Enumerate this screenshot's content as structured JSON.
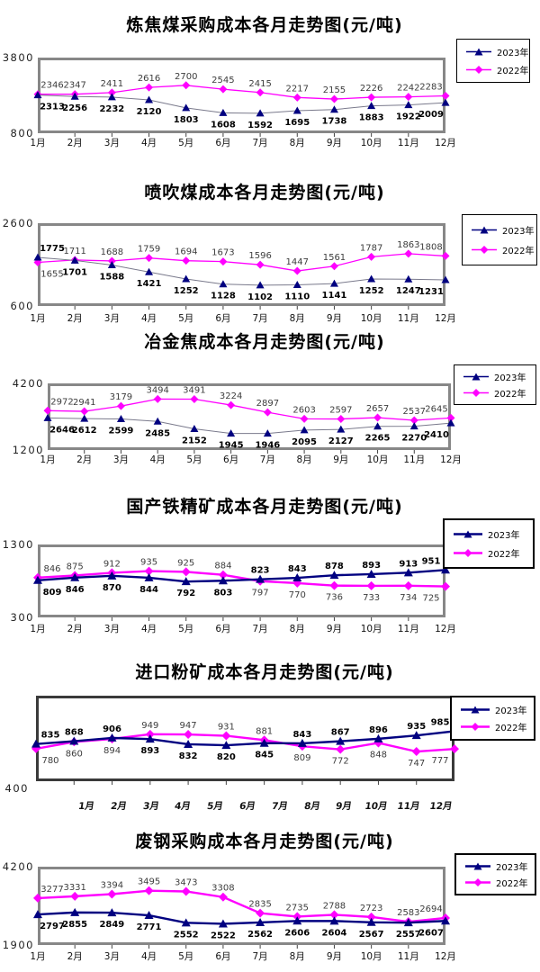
{
  "chart_data": [
    {
      "id": "coking-coal",
      "type": "line",
      "title": "炼焦煤采购成本各月走势图(元/吨)",
      "categories": [
        "1月",
        "2月",
        "3月",
        "4月",
        "5月",
        "6月",
        "7月",
        "8月",
        "9月",
        "10月",
        "11月",
        "12月"
      ],
      "y_axis": {
        "max_label": "3800",
        "min_label": "800",
        "ylim": [
          800,
          3800
        ]
      },
      "legend_position": "top-right",
      "series": [
        {
          "name": "2023年",
          "marker": "triangle",
          "color": "#000080",
          "line_color": "#7a7a8c",
          "values": [
            2313,
            2256,
            2232,
            2120,
            1803,
            1608,
            1592,
            1695,
            1738,
            1883,
            1922,
            2009
          ]
        },
        {
          "name": "2022年",
          "marker": "diamond",
          "color": "#ff00ff",
          "line_color": "#ff00ff",
          "values": [
            2346,
            2347,
            2411,
            2616,
            2700,
            2545,
            2415,
            2217,
            2155,
            2226,
            2242,
            2283
          ]
        }
      ]
    },
    {
      "id": "pci-coal",
      "type": "line",
      "title": "喷吹煤成本各月走势图(元/吨)",
      "categories": [
        "1月",
        "2月",
        "3月",
        "4月",
        "5月",
        "6月",
        "7月",
        "8月",
        "9月",
        "10月",
        "11月",
        "12月"
      ],
      "y_axis": {
        "max_label": "2600",
        "min_label": "600",
        "ylim": [
          600,
          2600
        ]
      },
      "legend_position": "top-right",
      "series": [
        {
          "name": "2023年",
          "marker": "triangle",
          "color": "#000080",
          "line_color": "#7a7a8c",
          "values": [
            1775,
            1701,
            1588,
            1421,
            1252,
            1128,
            1102,
            1110,
            1141,
            1252,
            1247,
            1231
          ]
        },
        {
          "name": "2022年",
          "marker": "diamond",
          "color": "#ff00ff",
          "line_color": "#ff00ff",
          "values": [
            1655,
            1711,
            1688,
            1759,
            1694,
            1673,
            1596,
            1447,
            1561,
            1787,
            1863,
            1808
          ]
        }
      ]
    },
    {
      "id": "met-coke",
      "type": "line",
      "title": "冶金焦成本各月走势图(元/吨)",
      "categories": [
        "1月",
        "2月",
        "3月",
        "4月",
        "5月",
        "6月",
        "7月",
        "8月",
        "9月",
        "10月",
        "11月",
        "12月"
      ],
      "y_axis": {
        "max_label": "4200",
        "min_label": "1200",
        "ylim": [
          1200,
          4200
        ]
      },
      "legend_position": "top-right",
      "series": [
        {
          "name": "2023年",
          "marker": "triangle",
          "color": "#000080",
          "line_color": "#7a7a8c",
          "values": [
            2646,
            2612,
            2599,
            2485,
            2152,
            1945,
            1946,
            2095,
            2127,
            2265,
            2270,
            2410
          ]
        },
        {
          "name": "2022年",
          "marker": "diamond",
          "color": "#ff00ff",
          "line_color": "#ff00ff",
          "values": [
            2972,
            2941,
            3179,
            3494,
            3491,
            3224,
            2897,
            2603,
            2597,
            2657,
            2537,
            2645
          ]
        }
      ]
    },
    {
      "id": "domestic-iron-concentrate",
      "type": "line",
      "title": "国产铁精矿成本各月走势图(元/吨)",
      "categories": [
        "1月",
        "2月",
        "3月",
        "4月",
        "5月",
        "6月",
        "7月",
        "8月",
        "9月",
        "10月",
        "11月",
        "12月"
      ],
      "y_axis": {
        "max_label": "1300",
        "min_label": "300",
        "ylim": [
          300,
          1300
        ]
      },
      "legend_position": "top-right",
      "series": [
        {
          "name": "2023年",
          "marker": "triangle",
          "color": "#000080",
          "line_color": "#000080",
          "values": [
            809,
            846,
            870,
            844,
            792,
            803,
            823,
            843,
            878,
            893,
            913,
            951
          ]
        },
        {
          "name": "2022年",
          "marker": "diamond",
          "color": "#ff00ff",
          "line_color": "#ff00ff",
          "values": [
            846,
            875,
            912,
            935,
            925,
            884,
            797,
            770,
            736,
            733,
            734,
            725
          ]
        }
      ]
    },
    {
      "id": "imported-fine-ore",
      "type": "line",
      "title": "进口粉矿成本各月走势图(元/吨)",
      "categories": [
        "1月",
        "2月",
        "3月",
        "4月",
        "5月",
        "6月",
        "7月",
        "8月",
        "9月",
        "10月",
        "11月",
        "12月"
      ],
      "y_axis": {
        "max_label": "",
        "min_label": "400",
        "ylim": [
          400,
          1400
        ]
      },
      "legend_position": "top-right",
      "series": [
        {
          "name": "2023年",
          "marker": "triangle",
          "color": "#000080",
          "line_color": "#000080",
          "values": [
            835,
            868,
            906,
            893,
            832,
            820,
            845,
            843,
            867,
            896,
            935,
            985
          ]
        },
        {
          "name": "2022年",
          "marker": "diamond",
          "color": "#ff00ff",
          "line_color": "#ff00ff",
          "values": [
            780,
            860,
            894,
            949,
            947,
            931,
            881,
            809,
            772,
            848,
            747,
            777
          ]
        }
      ]
    },
    {
      "id": "scrap-steel",
      "type": "line",
      "title": "废钢采购成本各月走势图(元/吨)",
      "categories": [
        "1月",
        "2月",
        "3月",
        "4月",
        "5月",
        "6月",
        "7月",
        "8月",
        "9月",
        "10月",
        "11月",
        "12月"
      ],
      "y_axis": {
        "max_label": "4200",
        "min_label": "1900",
        "ylim": [
          1900,
          4200
        ]
      },
      "legend_position": "top-right",
      "series": [
        {
          "name": "2023年",
          "marker": "triangle",
          "color": "#000080",
          "line_color": "#000080",
          "values": [
            2797,
            2855,
            2849,
            2771,
            2552,
            2522,
            2562,
            2606,
            2604,
            2567,
            2557,
            2607
          ]
        },
        {
          "name": "2022年",
          "marker": "diamond",
          "color": "#ff00ff",
          "line_color": "#ff00ff",
          "values": [
            3277,
            3331,
            3394,
            3495,
            3473,
            3308,
            2835,
            2735,
            2788,
            2723,
            2583,
            2694
          ]
        }
      ]
    }
  ]
}
